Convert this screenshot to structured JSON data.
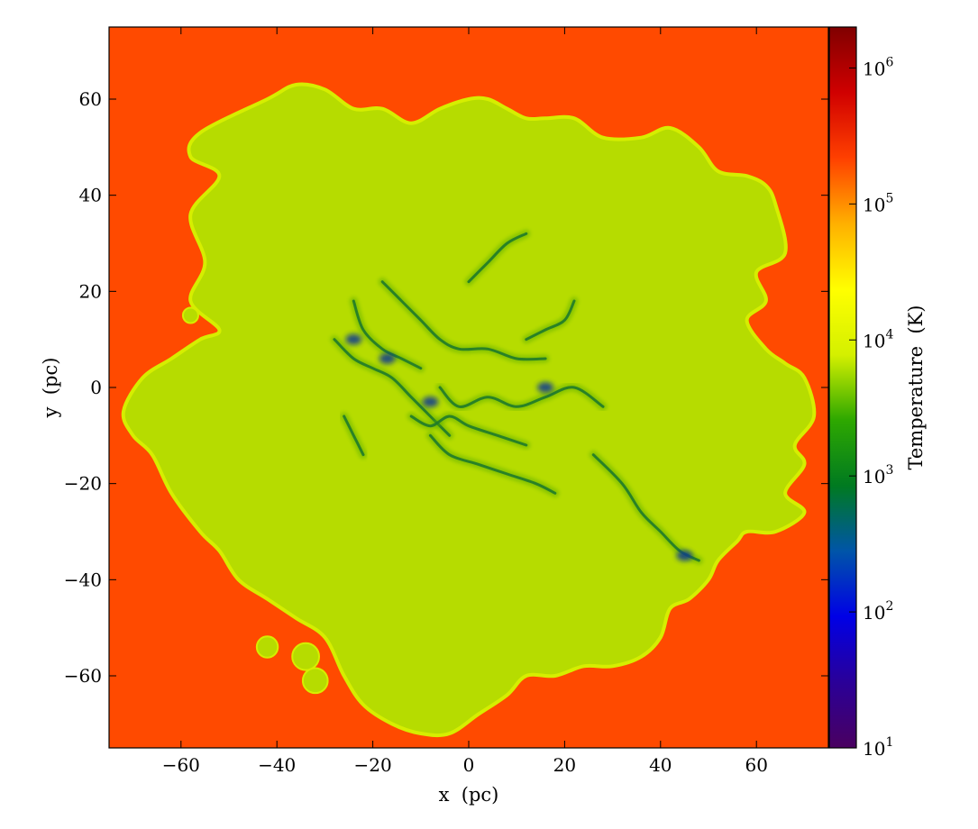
{
  "chart_data": {
    "type": "heatmap",
    "title": "",
    "xlabel": "x  (pc)",
    "ylabel": "y  (pc)",
    "xlim": [
      -75,
      75
    ],
    "ylim": [
      -75,
      75
    ],
    "xticks": [
      {
        "value": -60,
        "label": "−60"
      },
      {
        "value": -40,
        "label": "−40"
      },
      {
        "value": -20,
        "label": "−20"
      },
      {
        "value": 0,
        "label": "0"
      },
      {
        "value": 20,
        "label": "20"
      },
      {
        "value": 40,
        "label": "40"
      },
      {
        "value": 60,
        "label": "60"
      }
    ],
    "yticks": [
      {
        "value": 60,
        "label": "60"
      },
      {
        "value": 40,
        "label": "40"
      },
      {
        "value": 20,
        "label": "20"
      },
      {
        "value": 0,
        "label": "0"
      },
      {
        "value": -20,
        "label": "−20"
      },
      {
        "value": -40,
        "label": "−40"
      },
      {
        "value": -60,
        "label": "−60"
      }
    ],
    "colorbar": {
      "label": "Temperature  (K)",
      "scale": "log",
      "range": [
        10,
        2000000
      ],
      "ticks": [
        {
          "value": 10,
          "base": "10",
          "exp": "1"
        },
        {
          "value": 100,
          "base": "10",
          "exp": "2"
        },
        {
          "value": 1000,
          "base": "10",
          "exp": "3"
        },
        {
          "value": 10000,
          "base": "10",
          "exp": "4"
        },
        {
          "value": 100000,
          "base": "10",
          "exp": "5"
        },
        {
          "value": 1000000,
          "base": "10",
          "exp": "6"
        }
      ],
      "colors": [
        "#4a0060",
        "#2a0098",
        "#0000e6",
        "#0055a8",
        "#007a20",
        "#2ea800",
        "#d4f000",
        "#ffff00",
        "#ffb000",
        "#ff4000",
        "#d00000",
        "#800000"
      ]
    },
    "regions": {
      "background_temperature_K": 1000000,
      "background_color": "#ff4a00",
      "cloud_temperature_K": 10000,
      "cloud_color": "#b6dc00",
      "cloud_edge_color": "#d6ee00",
      "filament_temperature_K": 500,
      "filament_color": "#1f7a2a",
      "core_color": "#0a3a90",
      "cloud_outline": [
        [
          -72,
          -5
        ],
        [
          -68,
          2
        ],
        [
          -62,
          6
        ],
        [
          -56,
          10
        ],
        [
          -52,
          12
        ],
        [
          -58,
          18
        ],
        [
          -55,
          26
        ],
        [
          -58,
          36
        ],
        [
          -52,
          44
        ],
        [
          -58,
          48
        ],
        [
          -56,
          53
        ],
        [
          -42,
          60
        ],
        [
          -36,
          63
        ],
        [
          -30,
          62
        ],
        [
          -24,
          58
        ],
        [
          -18,
          58
        ],
        [
          -12,
          55
        ],
        [
          -6,
          58
        ],
        [
          0,
          60
        ],
        [
          4,
          60
        ],
        [
          8,
          58
        ],
        [
          12,
          56
        ],
        [
          16,
          56
        ],
        [
          22,
          56
        ],
        [
          28,
          52
        ],
        [
          36,
          52
        ],
        [
          42,
          54
        ],
        [
          48,
          50
        ],
        [
          52,
          45
        ],
        [
          58,
          44
        ],
        [
          62,
          42
        ],
        [
          64,
          38
        ],
        [
          66,
          28
        ],
        [
          60,
          24
        ],
        [
          62,
          18
        ],
        [
          58,
          14
        ],
        [
          62,
          8
        ],
        [
          66,
          5
        ],
        [
          70,
          2
        ],
        [
          72,
          -6
        ],
        [
          68,
          -12
        ],
        [
          70,
          -16
        ],
        [
          66,
          -22
        ],
        [
          70,
          -26
        ],
        [
          64,
          -30
        ],
        [
          58,
          -30
        ],
        [
          56,
          -32
        ],
        [
          52,
          -36
        ],
        [
          50,
          -40
        ],
        [
          46,
          -44
        ],
        [
          42,
          -46
        ],
        [
          40,
          -52
        ],
        [
          36,
          -56
        ],
        [
          30,
          -58
        ],
        [
          24,
          -58
        ],
        [
          18,
          -60
        ],
        [
          12,
          -60
        ],
        [
          8,
          -64
        ],
        [
          2,
          -68
        ],
        [
          -4,
          -72
        ],
        [
          -10,
          -72
        ],
        [
          -16,
          -70
        ],
        [
          -22,
          -66
        ],
        [
          -26,
          -60
        ],
        [
          -30,
          -52
        ],
        [
          -36,
          -48
        ],
        [
          -42,
          -44
        ],
        [
          -48,
          -40
        ],
        [
          -52,
          -34
        ],
        [
          -56,
          -30
        ],
        [
          -62,
          -22
        ],
        [
          -66,
          -14
        ],
        [
          -70,
          -10
        ]
      ],
      "filaments": [
        [
          [
            -28,
            10
          ],
          [
            -24,
            6
          ],
          [
            -20,
            4
          ],
          [
            -16,
            2
          ],
          [
            -12,
            -2
          ],
          [
            -8,
            -6
          ],
          [
            -4,
            -10
          ]
        ],
        [
          [
            -24,
            18
          ],
          [
            -22,
            12
          ],
          [
            -18,
            8
          ],
          [
            -14,
            6
          ],
          [
            -10,
            4
          ]
        ],
        [
          [
            -18,
            22
          ],
          [
            -14,
            18
          ],
          [
            -10,
            14
          ],
          [
            -6,
            10
          ],
          [
            -2,
            8
          ],
          [
            4,
            8
          ],
          [
            10,
            6
          ],
          [
            16,
            6
          ]
        ],
        [
          [
            -8,
            -10
          ],
          [
            -4,
            -14
          ],
          [
            2,
            -16
          ],
          [
            8,
            -18
          ],
          [
            14,
            -20
          ],
          [
            18,
            -22
          ]
        ],
        [
          [
            -6,
            0
          ],
          [
            -2,
            -4
          ],
          [
            4,
            -2
          ],
          [
            10,
            -4
          ],
          [
            16,
            -2
          ],
          [
            22,
            0
          ],
          [
            28,
            -4
          ]
        ],
        [
          [
            0,
            22
          ],
          [
            4,
            26
          ],
          [
            8,
            30
          ],
          [
            12,
            32
          ]
        ],
        [
          [
            26,
            -14
          ],
          [
            32,
            -20
          ],
          [
            36,
            -26
          ],
          [
            40,
            -30
          ],
          [
            44,
            -34
          ],
          [
            48,
            -36
          ]
        ],
        [
          [
            12,
            10
          ],
          [
            16,
            12
          ],
          [
            20,
            14
          ],
          [
            22,
            18
          ]
        ],
        [
          [
            -26,
            -6
          ],
          [
            -24,
            -10
          ],
          [
            -22,
            -14
          ]
        ],
        [
          [
            -12,
            -6
          ],
          [
            -8,
            -8
          ],
          [
            -4,
            -6
          ],
          [
            0,
            -8
          ],
          [
            6,
            -10
          ],
          [
            12,
            -12
          ]
        ]
      ],
      "cold_cores": [
        {
          "x": -17,
          "y": 6
        },
        {
          "x": -8,
          "y": -3
        },
        {
          "x": 45,
          "y": -35
        },
        {
          "x": 16,
          "y": 0
        },
        {
          "x": -24,
          "y": 10
        }
      ],
      "islands": [
        {
          "x": -58,
          "y": 15,
          "r": 1.6
        },
        {
          "x": -42,
          "y": -54,
          "r": 2.2
        },
        {
          "x": -34,
          "y": -56,
          "r": 2.8
        },
        {
          "x": -32,
          "y": -61,
          "r": 2.6
        }
      ]
    }
  }
}
